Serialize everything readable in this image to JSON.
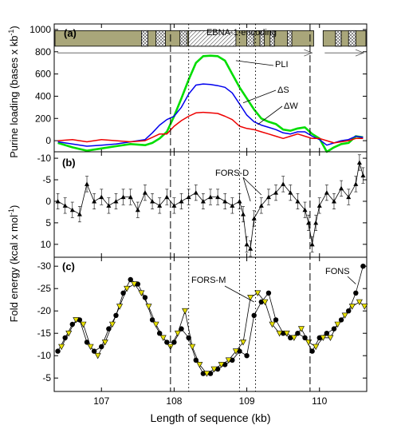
{
  "figure": {
    "xlabel": "Length of sequence (kb)",
    "ylabel_a_main": "Purine loading (bases x kb",
    "ylabel_a_sup": "-1",
    "ylabel_a_tail": ")",
    "ylabel_bc_main": "Fold energy (kcal x mol",
    "ylabel_bc_sup": "-1",
    "ylabel_bc_tail": ")",
    "xticks": [
      "107",
      "108",
      "109",
      "110"
    ],
    "xlim": [
      106.35,
      110.65
    ],
    "vlines_dashed": [
      107.95,
      109.87
    ],
    "vlines_dotted": [
      108.2,
      108.9,
      109.12
    ]
  },
  "gene_map": {
    "label": "EBNA-1-encoding",
    "gap_kb": [
      109.92,
      110.05
    ],
    "segments": [
      {
        "x0": 107.55,
        "x1": 107.64,
        "style": "cross"
      },
      {
        "x0": 107.75,
        "x1": 107.88,
        "style": "cross"
      },
      {
        "x0": 108.08,
        "x1": 108.18,
        "style": "cross"
      },
      {
        "x0": 108.2,
        "x1": 108.85,
        "style": "hatch"
      },
      {
        "x0": 109.0,
        "x1": 109.1,
        "style": "cross"
      },
      {
        "x0": 109.18,
        "x1": 109.24,
        "style": "cross"
      },
      {
        "x0": 109.32,
        "x1": 109.38,
        "style": "cross"
      },
      {
        "x0": 109.56,
        "x1": 109.62,
        "style": "cross"
      },
      {
        "x0": 110.22,
        "x1": 110.3,
        "style": "cross"
      },
      {
        "x0": 110.4,
        "x1": 110.5,
        "style": "cross"
      }
    ]
  },
  "chart_data": [
    {
      "panel": "(a)",
      "type": "line",
      "ylim": [
        -100,
        1050
      ],
      "yticks": [
        0,
        200,
        400,
        600,
        800,
        1000
      ],
      "grid": false,
      "series": [
        {
          "name": "PLI",
          "color": "#00dd00",
          "x": [
            106.4,
            106.6,
            106.8,
            107.0,
            107.2,
            107.4,
            107.6,
            107.7,
            107.8,
            107.9,
            108.0,
            108.1,
            108.2,
            108.3,
            108.4,
            108.5,
            108.6,
            108.7,
            108.8,
            108.9,
            109.0,
            109.1,
            109.2,
            109.3,
            109.4,
            109.5,
            109.6,
            109.7,
            109.8,
            109.9,
            110.0,
            110.1,
            110.2,
            110.3,
            110.4,
            110.5,
            110.6
          ],
          "y": [
            -20,
            -60,
            -90,
            -70,
            -50,
            -30,
            -40,
            -20,
            20,
            80,
            220,
            380,
            550,
            700,
            760,
            765,
            760,
            720,
            600,
            480,
            380,
            280,
            200,
            170,
            150,
            100,
            90,
            110,
            120,
            60,
            20,
            -100,
            -60,
            -30,
            -20,
            40,
            30
          ]
        },
        {
          "name": "ΔS",
          "color": "#0000ee",
          "x": [
            106.4,
            106.6,
            106.8,
            107.0,
            107.2,
            107.4,
            107.6,
            107.7,
            107.8,
            107.9,
            108.0,
            108.1,
            108.2,
            108.3,
            108.4,
            108.5,
            108.6,
            108.7,
            108.8,
            108.9,
            109.0,
            109.1,
            109.2,
            109.3,
            109.4,
            109.5,
            109.6,
            109.7,
            109.8,
            109.9,
            110.0,
            110.1,
            110.2,
            110.3,
            110.4,
            110.5,
            110.6
          ],
          "y": [
            -10,
            -30,
            -50,
            -40,
            -30,
            -10,
            10,
            70,
            140,
            190,
            220,
            300,
            420,
            500,
            510,
            505,
            495,
            480,
            430,
            330,
            230,
            170,
            140,
            120,
            100,
            70,
            60,
            80,
            80,
            40,
            10,
            -40,
            -20,
            0,
            10,
            40,
            30
          ]
        },
        {
          "name": "ΔW",
          "color": "#ee0000",
          "x": [
            106.4,
            106.6,
            106.8,
            107.0,
            107.2,
            107.4,
            107.6,
            107.7,
            107.8,
            107.9,
            108.0,
            108.1,
            108.2,
            108.3,
            108.4,
            108.5,
            108.6,
            108.7,
            108.8,
            108.9,
            109.0,
            109.1,
            109.2,
            109.3,
            109.4,
            109.5,
            109.6,
            109.7,
            109.8,
            109.9,
            110.0,
            110.1,
            110.2,
            110.3,
            110.4,
            110.5,
            110.6
          ],
          "y": [
            0,
            10,
            -10,
            10,
            0,
            -10,
            0,
            30,
            60,
            60,
            130,
            180,
            220,
            250,
            255,
            250,
            245,
            220,
            190,
            130,
            110,
            100,
            80,
            60,
            40,
            20,
            40,
            60,
            40,
            20,
            20,
            0,
            -20,
            -10,
            0,
            20,
            20
          ]
        }
      ],
      "annotations": [
        "PLI",
        "ΔS",
        "ΔW"
      ]
    },
    {
      "panel": "(b)",
      "type": "scatter",
      "ylim": [
        13,
        -11.5
      ],
      "yticks": [
        -10,
        -5,
        0,
        5,
        10
      ],
      "grid": false,
      "series": [
        {
          "name": "",
          "marker": "triangle",
          "color": "#000000",
          "x": [
            106.4,
            106.5,
            106.6,
            106.7,
            106.8,
            106.9,
            107.0,
            107.1,
            107.2,
            107.3,
            107.4,
            107.5,
            107.6,
            107.7,
            107.8,
            107.9,
            108.0,
            108.1,
            108.2,
            108.3,
            108.4,
            108.5,
            108.6,
            108.7,
            108.8,
            108.9,
            108.95,
            109.0,
            109.05,
            109.1,
            109.2,
            109.3,
            109.4,
            109.5,
            109.6,
            109.7,
            109.8,
            109.85,
            109.9,
            109.95,
            110.0,
            110.1,
            110.2,
            110.3,
            110.4,
            110.5,
            110.55,
            110.6
          ],
          "y": [
            0,
            1,
            2,
            3,
            -4,
            0,
            -1,
            1,
            0,
            -1,
            -1,
            2,
            -2,
            0,
            1,
            -1,
            1,
            0,
            -1,
            -2,
            0,
            -1,
            -1,
            0,
            1,
            0,
            3,
            10,
            11,
            4,
            1,
            -1,
            -2,
            -4,
            -2,
            0,
            2,
            5,
            10,
            5,
            1,
            -2,
            0,
            -3,
            -1,
            -4,
            -9,
            -6
          ]
        }
      ],
      "annotations": [
        "FORS-D"
      ]
    },
    {
      "panel": "(c)",
      "type": "scatter",
      "ylim": [
        -2,
        -32
      ],
      "yticks": [
        -30,
        -25,
        -20,
        -15,
        -10,
        -5
      ],
      "grid": false,
      "series": [
        {
          "name": "",
          "marker": "circle",
          "color": "#000000",
          "x": [
            106.4,
            106.5,
            106.6,
            106.7,
            106.8,
            106.9,
            107.0,
            107.1,
            107.2,
            107.3,
            107.4,
            107.5,
            107.6,
            107.7,
            107.8,
            107.9,
            108.0,
            108.1,
            108.2,
            108.3,
            108.4,
            108.5,
            108.6,
            108.7,
            108.8,
            108.9,
            109.0,
            109.1,
            109.2,
            109.3,
            109.4,
            109.5,
            109.6,
            109.7,
            109.8,
            109.9,
            110.0,
            110.1,
            110.2,
            110.3,
            110.4,
            110.5,
            110.6
          ],
          "y": [
            -11,
            -14,
            -17,
            -18,
            -13,
            -11,
            -12,
            -16,
            -19,
            -24,
            -27,
            -26,
            -23,
            -18,
            -15,
            -13,
            -13,
            -16,
            -14,
            -9,
            -6,
            -6,
            -7,
            -8,
            -9,
            -11,
            -10,
            -19,
            -22,
            -24,
            -18,
            -15,
            -14,
            -15,
            -14,
            -11,
            -14,
            -15,
            -16,
            -18,
            -20,
            -24,
            -30
          ]
        },
        {
          "name": "",
          "marker": "triangle-down",
          "color": "#e8e000",
          "x": [
            106.45,
            106.55,
            106.65,
            106.75,
            106.85,
            106.95,
            107.05,
            107.15,
            107.25,
            107.35,
            107.45,
            107.55,
            107.65,
            107.75,
            107.85,
            107.95,
            108.05,
            108.15,
            108.25,
            108.35,
            108.45,
            108.55,
            108.65,
            108.75,
            108.85,
            108.95,
            109.05,
            109.15,
            109.25,
            109.35,
            109.45,
            109.55,
            109.65,
            109.75,
            109.85,
            109.95,
            110.05,
            110.15,
            110.25,
            110.35,
            110.45,
            110.55,
            110.62
          ],
          "y": [
            -12,
            -15,
            -18,
            -17,
            -12,
            -10,
            -13,
            -17,
            -21,
            -25,
            -26,
            -24,
            -21,
            -17,
            -14,
            -12,
            -15,
            -20,
            -12,
            -8,
            -6,
            -7,
            -8,
            -9,
            -11,
            -13,
            -23,
            -24,
            -22,
            -17,
            -15,
            -15,
            -14,
            -16,
            -13,
            -12,
            -14,
            -14,
            -17,
            -19,
            -21,
            -22,
            -21
          ]
        }
      ],
      "annotations": [
        "FORS-M",
        "FONS"
      ]
    }
  ]
}
